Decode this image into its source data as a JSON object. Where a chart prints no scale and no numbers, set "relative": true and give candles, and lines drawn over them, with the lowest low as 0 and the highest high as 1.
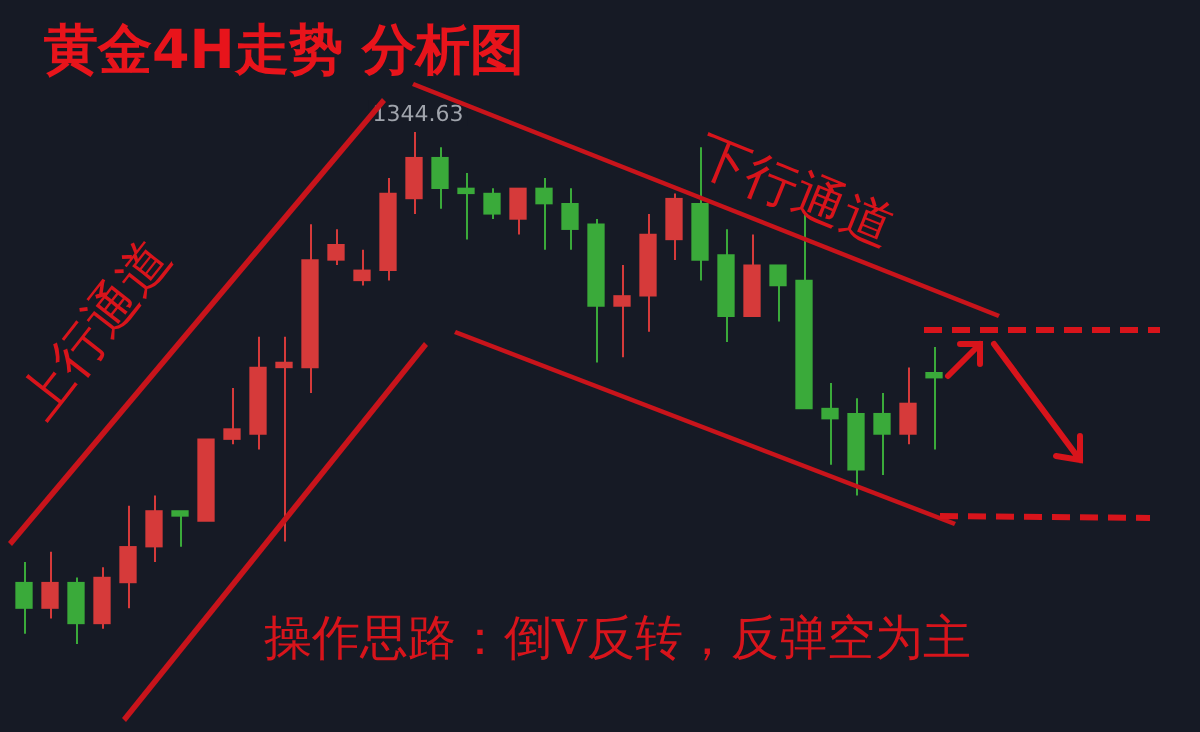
{
  "chart_data": {
    "type": "candlestick",
    "title": "黄金4H走势 分析图",
    "relative": true,
    "categories": [
      null,
      null,
      null,
      null,
      null,
      null,
      null,
      null,
      null,
      null,
      null,
      null,
      null,
      null,
      null,
      null,
      null,
      null,
      null,
      null,
      null,
      null,
      null,
      null,
      null,
      null,
      null,
      null,
      null,
      null,
      null,
      null,
      null,
      null,
      null,
      null
    ],
    "ohlc": [
      [
        0.12,
        0.16,
        0.02,
        0.07
      ],
      [
        0.07,
        0.18,
        0.05,
        0.12
      ],
      [
        0.12,
        0.13,
        0,
        0.04
      ],
      [
        0.04,
        0.15,
        0.03,
        0.13
      ],
      [
        0.12,
        0.27,
        0.07,
        0.19
      ],
      [
        0.19,
        0.29,
        0.16,
        0.26
      ],
      [
        0.26,
        0.26,
        0.19,
        0.25
      ],
      [
        0.24,
        0.4,
        0.24,
        0.4
      ],
      [
        0.4,
        0.5,
        0.39,
        0.42
      ],
      [
        0.41,
        0.6,
        0.38,
        0.54
      ],
      [
        0.54,
        0.6,
        0.2,
        0.55
      ],
      [
        0.54,
        0.82,
        0.49,
        0.75
      ],
      [
        0.75,
        0.81,
        0.74,
        0.78
      ],
      [
        0.71,
        0.77,
        0.7,
        0.73
      ],
      [
        0.73,
        0.91,
        0.71,
        0.88
      ],
      [
        0.87,
        1,
        0.84,
        0.95
      ],
      [
        0.95,
        0.97,
        0.85,
        0.89
      ],
      [
        0.89,
        0.92,
        0.79,
        0.88
      ],
      [
        0.88,
        0.89,
        0.83,
        0.84
      ],
      [
        0.83,
        0.89,
        0.8,
        0.89
      ],
      [
        0.89,
        0.91,
        0.77,
        0.86
      ],
      [
        0.86,
        0.89,
        0.77,
        0.81
      ],
      [
        0.82,
        0.83,
        0.55,
        0.66
      ],
      [
        0.66,
        0.74,
        0.56,
        0.68
      ],
      [
        0.68,
        0.84,
        0.61,
        0.8
      ],
      [
        0.79,
        0.88,
        0.75,
        0.87
      ],
      [
        0.86,
        0.97,
        0.71,
        0.75
      ],
      [
        0.76,
        0.81,
        0.59,
        0.64
      ],
      [
        0.64,
        0.8,
        0.64,
        0.74
      ],
      [
        0.74,
        0.74,
        0.63,
        0.7
      ],
      [
        0.71,
        0.84,
        0.46,
        0.46
      ],
      [
        0.46,
        0.51,
        0.35,
        0.44
      ],
      [
        0.45,
        0.48,
        0.29,
        0.34
      ],
      [
        0.45,
        0.49,
        0.33,
        0.41
      ],
      [
        0.41,
        0.54,
        0.39,
        0.47
      ],
      [
        0.53,
        0.58,
        0.38,
        0.52
      ]
    ],
    "colors": [
      "#3aaa3a",
      "#d63a3a",
      "#3aaa3a",
      "#d63a3a",
      "#d63a3a",
      "#d63a3a",
      "#3aaa3a",
      "#d63a3a",
      "#d63a3a",
      "#d63a3a",
      "#d63a3a",
      "#d63a3a",
      "#d63a3a",
      "#d63a3a",
      "#d63a3a",
      "#d63a3a",
      "#3aaa3a",
      "#3aaa3a",
      "#3aaa3a",
      "#d63a3a",
      "#3aaa3a",
      "#3aaa3a",
      "#3aaa3a",
      "#d63a3a",
      "#d63a3a",
      "#d63a3a",
      "#3aaa3a",
      "#3aaa3a",
      "#d63a3a",
      "#3aaa3a",
      "#3aaa3a",
      "#3aaa3a",
      "#3aaa3a",
      "#3aaa3a",
      "#d63a3a",
      "#3aaa3a"
    ],
    "annotations": [
      {
        "text": "1344.63",
        "y": 1
      },
      "上行通道",
      "下行通道",
      "操作思路：倒V反转，反弹空为主"
    ],
    "legend": false
  }
}
